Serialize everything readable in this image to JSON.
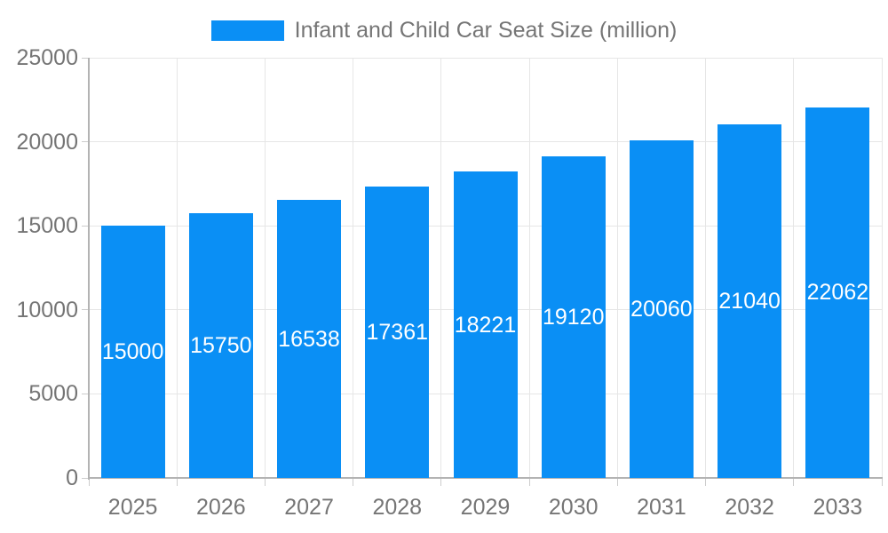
{
  "chart_data": {
    "type": "bar",
    "title": "Infant and Child Car Seat Size (million)",
    "legend_position": "top",
    "categories": [
      "2025",
      "2026",
      "2027",
      "2028",
      "2029",
      "2030",
      "2031",
      "2032",
      "2033"
    ],
    "series": [
      {
        "name": "Infant and Child Car Seat Size (million)",
        "values": [
          15000,
          15750,
          16538,
          17361,
          18221,
          19120,
          20060,
          21040,
          22062
        ]
      }
    ],
    "bar_labels": [
      "15000",
      "15750",
      "16538",
      "17361",
      "18221",
      "19120",
      "20060",
      "21040",
      "22062"
    ],
    "xlabel": "",
    "ylabel": "",
    "ylim": [
      0,
      25000
    ],
    "yticks": [
      0,
      5000,
      10000,
      15000,
      20000,
      25000
    ],
    "grid": "both",
    "colors": {
      "bar": "#0a8ff5",
      "bar_label": "#ffffff",
      "axis_text": "#757575",
      "grid_line": "#e6e6e6",
      "axis_line": "#b3b3b3",
      "tick_line": "#cccccc",
      "background": "#ffffff"
    }
  }
}
